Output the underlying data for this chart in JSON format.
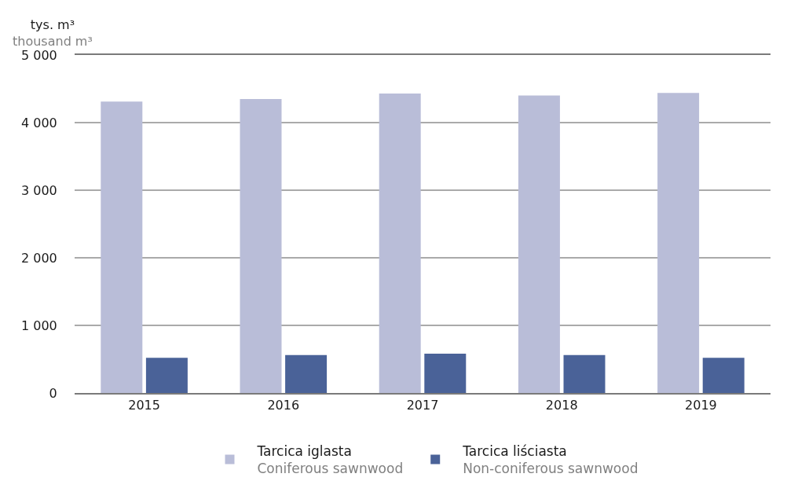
{
  "chart_data": {
    "type": "bar",
    "ylabel": "tys. m³\nthousand m³",
    "categories": [
      "2015",
      "2016",
      "2017",
      "2018",
      "2019"
    ],
    "series": [
      {
        "name": "Tarcica iglasta\nConiferous sawnwood",
        "color": "#b9bdd8",
        "values": [
          4310,
          4350,
          4430,
          4400,
          4440
        ]
      },
      {
        "name": "Tarcica liściasta\nNon-coniferous sawnwood",
        "color": "#4a6298",
        "values": [
          520,
          560,
          580,
          560,
          520
        ]
      }
    ],
    "ylim": [
      0,
      5000
    ],
    "yticks": [
      0,
      {
        "value": 1000,
        "label": "1 000"
      },
      {
        "value": 2000,
        "label": "2 000"
      },
      {
        "value": 3000,
        "label": "3 000"
      },
      {
        "value": 4000,
        "label": "4 000"
      },
      {
        "value": 5000,
        "label": "5 000"
      }
    ],
    "grid": "y",
    "legend": "bottom"
  }
}
